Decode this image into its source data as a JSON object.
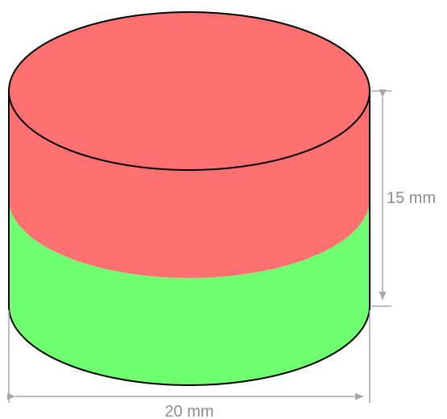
{
  "diagram": {
    "height_label": "15 mm",
    "diameter_label": "20 mm",
    "colors": {
      "north_pole": "#ff7070",
      "south_pole": "#70ff70",
      "outline": "#000000",
      "dimension": "#a6a6a6"
    }
  }
}
